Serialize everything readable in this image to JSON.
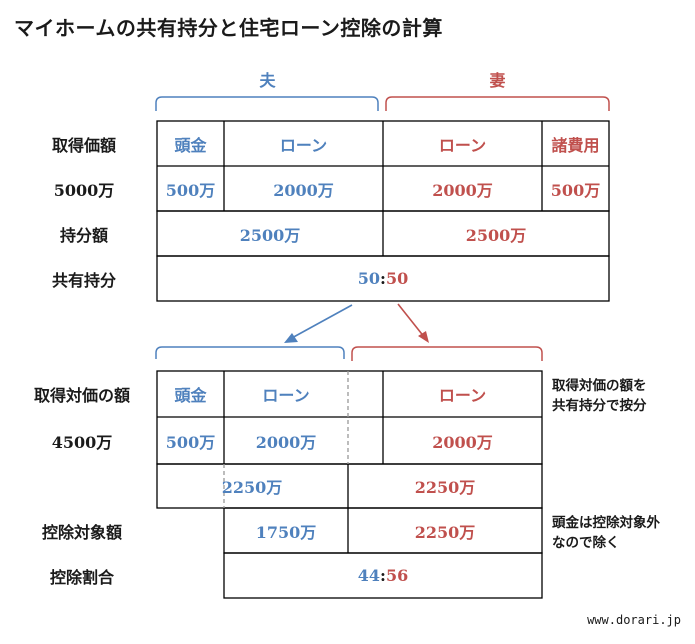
{
  "title": "マイホームの共有持分と住宅ローン控除の計算",
  "top": {
    "husband": "夫",
    "wife": "妻",
    "labels": {
      "acquisition": "取得価額",
      "price": "5000万",
      "share_amount": "持分額",
      "co_share": "共有持分"
    },
    "headers": {
      "down_payment": "頭金",
      "loan_h": "ローン",
      "loan_w": "ローン",
      "costs": "諸費用"
    },
    "values": {
      "down_payment": "500万",
      "loan_h": "2000万",
      "loan_w": "2000万",
      "costs": "500万"
    },
    "shares": {
      "husband": "2500万",
      "wife": "2500万"
    },
    "ratio": {
      "husband": "50",
      "sep": ":",
      "wife": "50"
    }
  },
  "bottom": {
    "labels": {
      "acquisition_price": "取得対価の額",
      "price": "4500万",
      "deduction_amount": "控除対象額",
      "deduction_ratio": "控除割合"
    },
    "headers": {
      "down_payment": "頭金",
      "loan_h": "ローン",
      "loan_w": "ローン"
    },
    "values": {
      "down_payment": "500万",
      "loan_h": "2000万",
      "loan_w": "2000万"
    },
    "shares": {
      "husband": "2250万",
      "wife": "2250万"
    },
    "deduction": {
      "husband": "1750万",
      "wife": "2250万"
    },
    "ratio": {
      "husband": "44",
      "sep": ":",
      "wife": "56"
    },
    "notes": {
      "note1_line1": "取得対価の額を",
      "note1_line2": "共有持分で按分",
      "note2_line1": "頭金は控除対象外",
      "note2_line2": "なので除く"
    }
  },
  "watermark": "www.dorari.jp",
  "colors": {
    "husband": "#4f81bd",
    "wife": "#c0504d"
  }
}
